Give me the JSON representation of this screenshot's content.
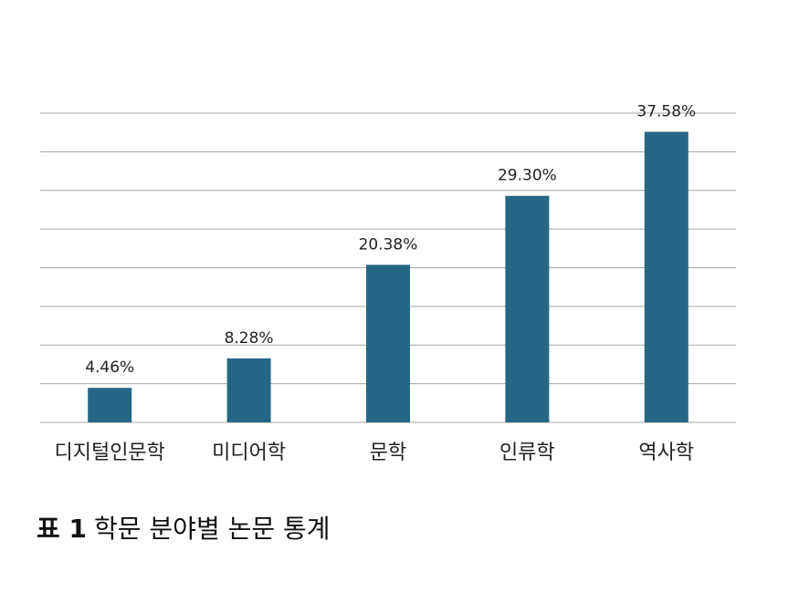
{
  "chart_data": {
    "type": "bar",
    "categories": [
      "디지털인문학",
      "미디어학",
      "문학",
      "인류학",
      "역사학"
    ],
    "values": [
      4.46,
      8.28,
      20.38,
      29.3,
      37.58
    ],
    "data_labels": [
      "4.46%",
      "8.28%",
      "20.38%",
      "29.30%",
      "37.58%"
    ],
    "ylim": [
      0,
      40
    ],
    "grid": true,
    "bar_color": "#266685",
    "grid_color": "#a6a6a6"
  },
  "caption": {
    "number": "표 1",
    "text": "학문 분야별 논문 통계"
  }
}
